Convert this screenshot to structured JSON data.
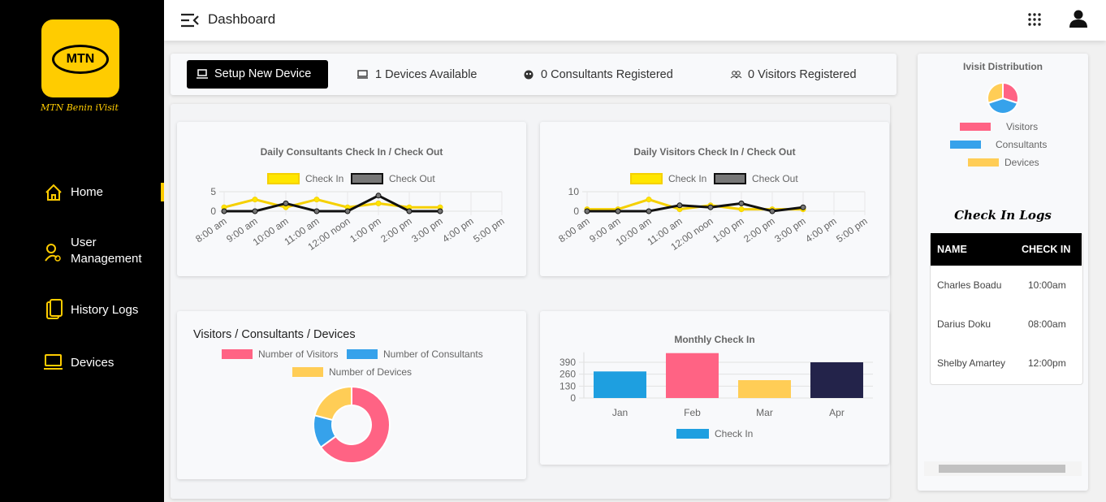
{
  "sidebar": {
    "logo": "MTN",
    "tagline": "MTN Benin iVisit",
    "nav": [
      "Home",
      "User Management",
      "History Logs",
      "Devices"
    ]
  },
  "header": {
    "title": "Dashboard"
  },
  "stats": {
    "button": "Setup New Device",
    "items": [
      "1 Devices Available",
      "0 Consultants Registered",
      "0 Visitors Registered"
    ]
  },
  "charts": [
    {
      "type": "line",
      "title": "Daily Consultants Check In / Check Out",
      "categories": [
        "8:00 am",
        "9:00 am",
        "10:00 am",
        "11:00 am",
        "12:00 noon",
        "1:00 pm",
        "2:00 pm",
        "3:00 pm",
        "4:00 pm",
        "5:00 pm"
      ],
      "series": [
        {
          "name": "Check In",
          "color": "#f5d000",
          "values": [
            1,
            3,
            1,
            3,
            1,
            2,
            1,
            1,
            null,
            null
          ]
        },
        {
          "name": "Check Out",
          "color": "#111111",
          "values": [
            0,
            0,
            2,
            0,
            0,
            4,
            0,
            0,
            null,
            null
          ]
        }
      ],
      "ylim": [
        0,
        5
      ],
      "yticks": [
        0,
        5
      ]
    },
    {
      "type": "line",
      "title": "Daily Visitors Check In / Check Out",
      "categories": [
        "8:00 am",
        "9:00 am",
        "10:00 am",
        "11:00 am",
        "12:00 noon",
        "1:00 pm",
        "2:00 pm",
        "3:00 pm",
        "4:00 pm",
        "5:00 pm"
      ],
      "series": [
        {
          "name": "Check In",
          "color": "#f5d000",
          "values": [
            1,
            1,
            6,
            1,
            3,
            1,
            1,
            1,
            null,
            null
          ]
        },
        {
          "name": "Check Out",
          "color": "#111111",
          "values": [
            0,
            0,
            0,
            3,
            2,
            4,
            0,
            2,
            null,
            null
          ]
        }
      ],
      "ylim": [
        0,
        10
      ],
      "yticks": [
        0,
        10
      ]
    },
    {
      "type": "doughnut",
      "title": "Visitors / Consultants / Devices",
      "categories": [
        "Number of Visitors",
        "Number of Consultants",
        "Number of Devices"
      ],
      "values": [
        65,
        14,
        21
      ],
      "colors": [
        "#ff6384",
        "#36a2eb",
        "#ffcd56"
      ]
    },
    {
      "type": "bar",
      "title": "Monthly Check In",
      "categories": [
        "Jan",
        "Feb",
        "Mar",
        "Apr"
      ],
      "series": [
        {
          "name": "Check In",
          "color": "#1e9fe0",
          "values": [
            290,
            490,
            195,
            390
          ]
        }
      ],
      "bar_colors": [
        "#1e9fe0",
        "#ff6384",
        "#ffcd56",
        "#23234a"
      ],
      "ylim": [
        0,
        500
      ],
      "yticks": [
        0,
        130,
        260,
        390
      ]
    },
    {
      "type": "pie",
      "title": "Ivisit Distribution",
      "categories": [
        "Visitors",
        "Consultants",
        "Devices"
      ],
      "values": [
        30,
        40,
        30
      ],
      "colors": [
        "#ff6384",
        "#36a2eb",
        "#ffcd56"
      ]
    }
  ],
  "logs": {
    "title": "Check In Logs",
    "columns": [
      "NAME",
      "CHECK IN"
    ],
    "rows": [
      [
        "Charles Boadu",
        "10:00am"
      ],
      [
        "Darius Doku",
        "08:00am"
      ],
      [
        "Shelby Amartey",
        "12:00pm"
      ]
    ]
  }
}
